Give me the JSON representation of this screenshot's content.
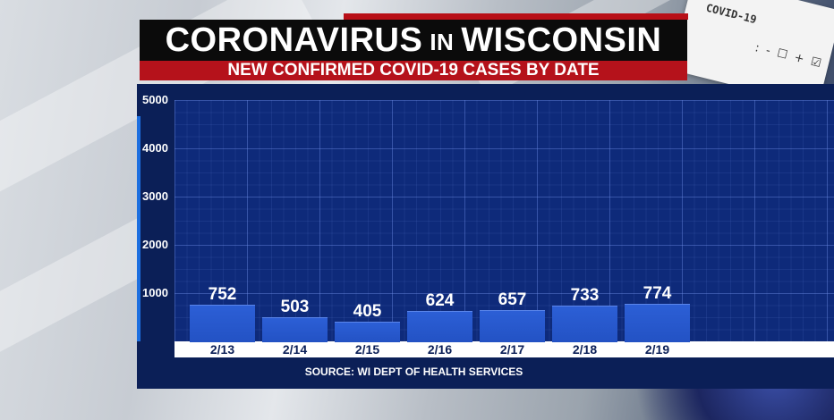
{
  "header": {
    "title_part1": "CORONAVIRUS",
    "title_small": "IN",
    "title_part2": "WISCONSIN",
    "subtitle": "NEW CONFIRMED COVID-19 CASES BY DATE"
  },
  "background": {
    "test_card_label": "COVID-19",
    "test_card_marks": ": - ☐ + ☑"
  },
  "source": "SOURCE: WI DEPT OF HEALTH SERVICES",
  "colors": {
    "title_bg": "#0b0b0b",
    "subtitle_bg": "#b5121b",
    "panel_bg": "#0b1f57",
    "plot_bg": "#0e2a7a",
    "bar": "#2c5fd6"
  },
  "chart_data": {
    "type": "bar",
    "title": "",
    "xlabel": "",
    "ylabel": "",
    "ylim": [
      0,
      5000
    ],
    "yticks": [
      1000,
      2000,
      3000,
      4000,
      5000
    ],
    "grid": true,
    "categories": [
      "2/13",
      "2/14",
      "2/15",
      "2/16",
      "2/17",
      "2/18",
      "2/19"
    ],
    "values": [
      752,
      503,
      405,
      624,
      657,
      733,
      774
    ]
  }
}
